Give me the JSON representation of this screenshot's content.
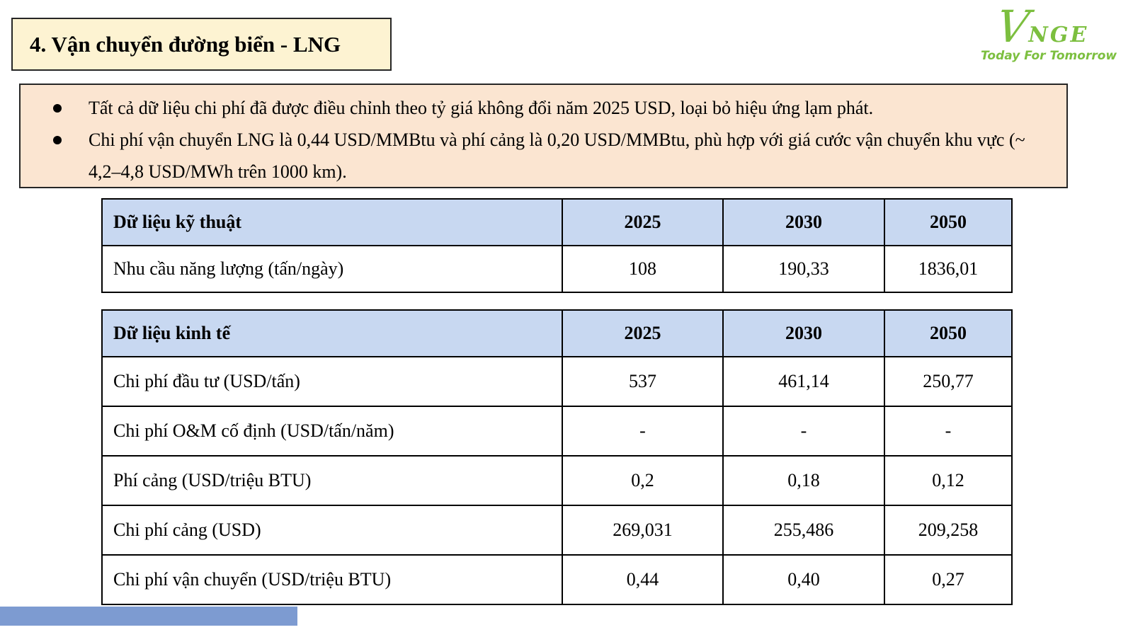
{
  "title": "4. Vận chuyển đường biển - LNG",
  "logo": {
    "letter_v": "V",
    "letters_rest": "NGE",
    "tagline": "Today For Tomorrow"
  },
  "notes": {
    "bullets": [
      "Tất cả dữ liệu chi phí đã được điều chỉnh theo tỷ giá không đổi năm 2025 USD, loại bỏ hiệu ứng lạm phát.",
      "Chi phí vận chuyển LNG là 0,44 USD/MMBtu và phí cảng là 0,20 USD/MMBtu, phù hợp với giá cước vận chuyển khu vực (~ 4,2–4,8 USD/MWh trên 1000 km)."
    ]
  },
  "tables": [
    {
      "header": [
        "Dữ liệu kỹ thuật",
        "2025",
        "2030",
        "2050"
      ],
      "rows": [
        [
          "Nhu cầu năng lượng (tấn/ngày)",
          "108",
          "190,33",
          "1836,01"
        ]
      ]
    },
    {
      "header": [
        "Dữ liệu kinh tế",
        "2025",
        "2030",
        "2050"
      ],
      "rows": [
        [
          "Chi phí đầu tư (USD/tấn)",
          "537",
          "461,14",
          "250,77"
        ],
        [
          "Chi phí O&M cố định (USD/tấn/năm)",
          "-",
          "-",
          "-"
        ],
        [
          "Phí cảng (USD/triệu BTU)",
          "0,2",
          "0,18",
          "0,12"
        ],
        [
          "Chi phí cảng (USD)",
          "269,031",
          "255,486",
          "209,258"
        ],
        [
          "Chi phí vận chuyển (USD/triệu BTU)",
          "0,44",
          "0,40",
          "0,27"
        ]
      ]
    }
  ],
  "colors": {
    "title_bg": "#fdf3d2",
    "notes_bg": "#fbe5d1",
    "table_header_bg": "#c8d8f1",
    "logo_green": "#7cbf3f",
    "footer_bar": "#7d9bd1",
    "border": "#262626"
  }
}
